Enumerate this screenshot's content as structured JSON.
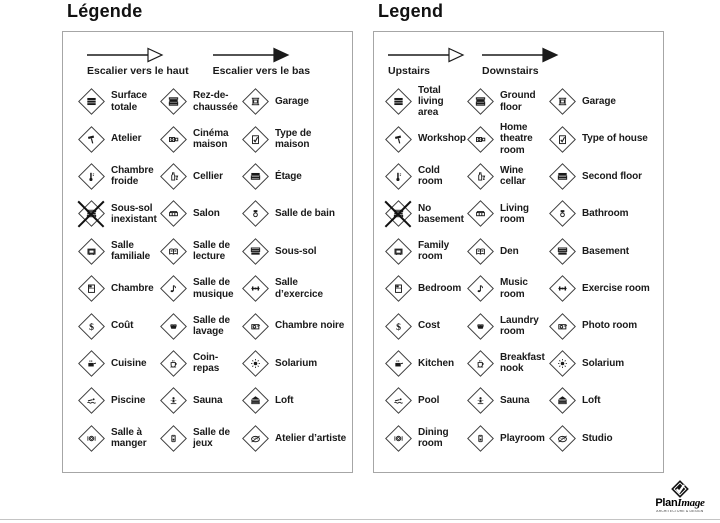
{
  "page": {
    "background": "#ffffff",
    "ink": "#1a1a1a",
    "box_border": "#a6a6a6"
  },
  "panels": [
    {
      "id": "fr",
      "title": "Légende",
      "arrows": [
        {
          "label": "Escalier vers le haut",
          "style": "hollow",
          "icon": "stairs-up-arrow-icon"
        },
        {
          "label": "Escalier vers le bas",
          "style": "solid",
          "icon": "stairs-down-arrow-icon"
        }
      ],
      "items": [
        {
          "label": "Surface totale",
          "icon": "total-living-area-icon"
        },
        {
          "label": "Rez-de-chaussée",
          "icon": "ground-floor-icon"
        },
        {
          "label": "Garage",
          "icon": "garage-icon"
        },
        {
          "label": "Atelier",
          "icon": "workshop-hammer-icon"
        },
        {
          "label": "Cinéma maison",
          "icon": "home-theatre-icon"
        },
        {
          "label": "Type de maison",
          "icon": "house-type-icon"
        },
        {
          "label": "Chambre froide",
          "icon": "cold-room-icon"
        },
        {
          "label": "Cellier",
          "icon": "wine-cellar-icon"
        },
        {
          "label": "Étage",
          "icon": "second-floor-icon"
        },
        {
          "label": "Sous-sol inexistant",
          "icon": "no-basement-icon",
          "crossed": true
        },
        {
          "label": "Salon",
          "icon": "living-room-icon"
        },
        {
          "label": "Salle de bain",
          "icon": "bathroom-icon"
        },
        {
          "label": "Salle familiale",
          "icon": "family-room-icon"
        },
        {
          "label": "Salle de lecture",
          "icon": "den-book-icon"
        },
        {
          "label": "Sous-sol",
          "icon": "basement-icon"
        },
        {
          "label": "Chambre",
          "icon": "bedroom-icon"
        },
        {
          "label": "Salle de musique",
          "icon": "music-room-icon"
        },
        {
          "label": "Salle d’exercice",
          "icon": "exercise-room-icon"
        },
        {
          "label": "Coût",
          "icon": "cost-icon"
        },
        {
          "label": "Salle de lavage",
          "icon": "laundry-room-icon"
        },
        {
          "label": "Chambre noire",
          "icon": "photo-room-icon"
        },
        {
          "label": "Cuisine",
          "icon": "kitchen-icon"
        },
        {
          "label": "Coin-repas",
          "icon": "breakfast-nook-icon"
        },
        {
          "label": "Solarium",
          "icon": "solarium-icon"
        },
        {
          "label": "Piscine",
          "icon": "pool-icon"
        },
        {
          "label": "Sauna",
          "icon": "sauna-icon"
        },
        {
          "label": "Loft",
          "icon": "loft-icon"
        },
        {
          "label": "Salle à manger",
          "icon": "dining-room-icon"
        },
        {
          "label": "Salle de jeux",
          "icon": "playroom-icon"
        },
        {
          "label": "Atelier d’artiste",
          "icon": "studio-icon"
        }
      ]
    },
    {
      "id": "en",
      "title": "Legend",
      "arrows": [
        {
          "label": "Upstairs",
          "style": "hollow",
          "icon": "stairs-up-arrow-icon"
        },
        {
          "label": "Downstairs",
          "style": "solid",
          "icon": "stairs-down-arrow-icon"
        }
      ],
      "items": [
        {
          "label": "Total living area",
          "icon": "total-living-area-icon"
        },
        {
          "label": "Ground floor",
          "icon": "ground-floor-icon"
        },
        {
          "label": "Garage",
          "icon": "garage-icon"
        },
        {
          "label": "Workshop",
          "icon": "workshop-hammer-icon"
        },
        {
          "label": "Home theatre room",
          "icon": "home-theatre-icon"
        },
        {
          "label": "Type of house",
          "icon": "house-type-icon"
        },
        {
          "label": "Cold room",
          "icon": "cold-room-icon"
        },
        {
          "label": "Wine cellar",
          "icon": "wine-cellar-icon"
        },
        {
          "label": "Second floor",
          "icon": "second-floor-icon"
        },
        {
          "label": "No basement",
          "icon": "no-basement-icon",
          "crossed": true
        },
        {
          "label": "Living room",
          "icon": "living-room-icon"
        },
        {
          "label": "Bathroom",
          "icon": "bathroom-icon"
        },
        {
          "label": "Family room",
          "icon": "family-room-icon"
        },
        {
          "label": "Den",
          "icon": "den-book-icon"
        },
        {
          "label": "Basement",
          "icon": "basement-icon"
        },
        {
          "label": "Bedroom",
          "icon": "bedroom-icon"
        },
        {
          "label": "Music room",
          "icon": "music-room-icon"
        },
        {
          "label": "Exercise room",
          "icon": "exercise-room-icon"
        },
        {
          "label": "Cost",
          "icon": "cost-icon"
        },
        {
          "label": "Laundry room",
          "icon": "laundry-room-icon"
        },
        {
          "label": "Photo room",
          "icon": "photo-room-icon"
        },
        {
          "label": "Kitchen",
          "icon": "kitchen-icon"
        },
        {
          "label": "Breakfast nook",
          "icon": "breakfast-nook-icon"
        },
        {
          "label": "Solarium",
          "icon": "solarium-icon"
        },
        {
          "label": "Pool",
          "icon": "pool-icon"
        },
        {
          "label": "Sauna",
          "icon": "sauna-icon"
        },
        {
          "label": "Loft",
          "icon": "loft-icon"
        },
        {
          "label": "Dining room",
          "icon": "dining-room-icon"
        },
        {
          "label": "Playroom",
          "icon": "playroom-icon"
        },
        {
          "label": "Studio",
          "icon": "studio-icon"
        }
      ]
    }
  ],
  "footer": {
    "logo_bold": "Plan",
    "logo_italic": "Image",
    "logo_tagline": "ARCHITECTURE & DESIGN",
    "logo_icon": "planimage-diamond-check-icon"
  }
}
